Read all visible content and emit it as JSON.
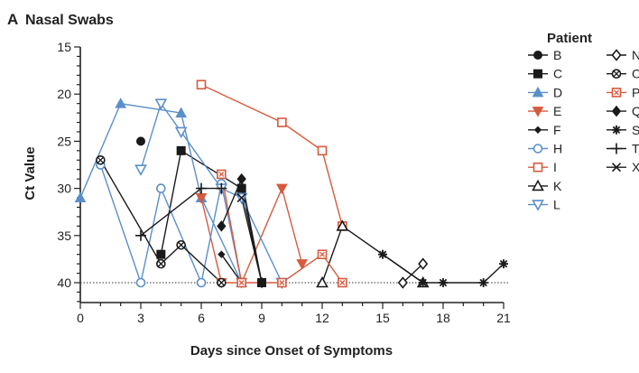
{
  "panel_label": "A",
  "chart_data": {
    "type": "line",
    "title": "Nasal Swabs",
    "xlabel": "Days since Onset of Symptoms",
    "ylabel": "Ct Value",
    "xlim": [
      0,
      21
    ],
    "ylim": [
      15,
      42
    ],
    "y_inverted": true,
    "xticks": [
      0,
      3,
      6,
      9,
      12,
      15,
      18,
      21
    ],
    "yticks": [
      15,
      20,
      25,
      30,
      35,
      40
    ],
    "reference_line": {
      "y": 40,
      "style": "dotted"
    },
    "legend_title": "Patient",
    "legend_placement": "right",
    "colors": {
      "black": "#1a1a1a",
      "blue": "#5b8fc9",
      "red": "#d65a3e"
    },
    "series": [
      {
        "name": "B",
        "color": "black",
        "marker": "filled-circle",
        "line": false,
        "points": [
          [
            3,
            25
          ],
          [
            7,
            40
          ]
        ]
      },
      {
        "name": "C",
        "color": "black",
        "marker": "filled-square",
        "points": [
          [
            4,
            37
          ],
          [
            5,
            26
          ],
          [
            8,
            30
          ],
          [
            9,
            40
          ]
        ]
      },
      {
        "name": "D",
        "color": "blue",
        "marker": "filled-triangle",
        "points": [
          [
            0,
            31
          ],
          [
            2,
            21
          ],
          [
            5,
            22
          ],
          [
            6,
            31
          ],
          [
            8,
            40
          ]
        ]
      },
      {
        "name": "E",
        "color": "red",
        "marker": "filled-down-triangle",
        "points": [
          [
            6,
            31
          ],
          [
            7,
            40
          ],
          [
            8,
            40
          ],
          [
            10,
            30
          ],
          [
            11,
            38
          ]
        ]
      },
      {
        "name": "F",
        "color": "black",
        "marker": "small-diamond",
        "points": [
          [
            7,
            37
          ],
          [
            8,
            40
          ]
        ]
      },
      {
        "name": "H",
        "color": "blue",
        "marker": "open-circle",
        "points": [
          [
            1,
            27.5
          ],
          [
            3,
            40
          ],
          [
            4,
            30
          ],
          [
            6,
            40
          ],
          [
            7,
            29.5
          ],
          [
            8,
            40
          ]
        ]
      },
      {
        "name": "I",
        "color": "red",
        "marker": "open-square",
        "points": [
          [
            6,
            19
          ],
          [
            10,
            23
          ],
          [
            12,
            26
          ],
          [
            13,
            34
          ]
        ]
      },
      {
        "name": "K",
        "color": "black",
        "marker": "open-triangle",
        "points": [
          [
            12,
            40
          ],
          [
            13,
            34
          ],
          [
            17,
            40
          ]
        ]
      },
      {
        "name": "L",
        "color": "blue",
        "marker": "open-down-triangle",
        "points": [
          [
            3,
            28
          ],
          [
            4,
            21
          ],
          [
            5,
            24
          ],
          [
            7,
            30
          ],
          [
            8,
            31
          ],
          [
            10,
            40
          ]
        ]
      },
      {
        "name": "N",
        "color": "black",
        "marker": "open-diamond",
        "points": [
          [
            16,
            40
          ],
          [
            17,
            38
          ]
        ]
      },
      {
        "name": "O",
        "color": "black",
        "marker": "circled-x",
        "points": [
          [
            1,
            27
          ],
          [
            4,
            38
          ],
          [
            5,
            36
          ],
          [
            7,
            40
          ]
        ]
      },
      {
        "name": "P",
        "color": "red",
        "marker": "crossed-square",
        "points": [
          [
            7,
            28.5
          ],
          [
            8,
            40
          ],
          [
            10,
            40
          ],
          [
            12,
            37
          ],
          [
            13,
            40
          ]
        ]
      },
      {
        "name": "Q",
        "color": "black",
        "marker": "filled-diamond",
        "points": [
          [
            7,
            34
          ],
          [
            8,
            29
          ],
          [
            9,
            40
          ]
        ]
      },
      {
        "name": "S",
        "color": "black",
        "marker": "asterisk",
        "points": [
          [
            15,
            37
          ],
          [
            17,
            40
          ],
          [
            18,
            40
          ],
          [
            20,
            40
          ],
          [
            21,
            38
          ]
        ]
      },
      {
        "name": "T",
        "color": "black",
        "marker": "plus",
        "points": [
          [
            3,
            35
          ],
          [
            6,
            30
          ],
          [
            7,
            30
          ]
        ]
      },
      {
        "name": "X",
        "color": "black",
        "marker": "x",
        "points": [
          [
            8,
            31
          ],
          [
            9,
            40
          ]
        ]
      }
    ]
  }
}
